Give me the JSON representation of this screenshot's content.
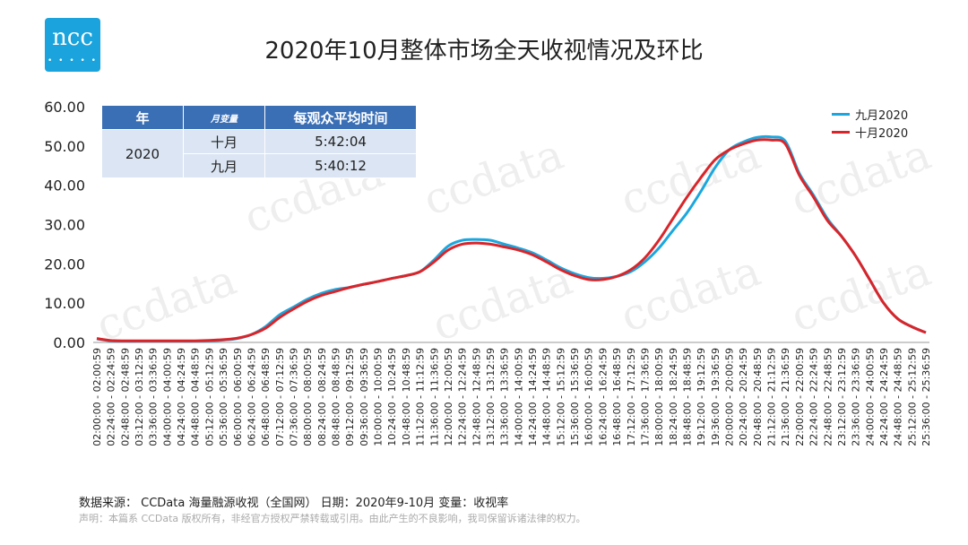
{
  "logo": {
    "text": "ncc",
    "dots": "• • • • •"
  },
  "title": "2020年10月整体市场全天收视情况及环比",
  "watermark": "ccdata",
  "table": {
    "headers": [
      "年",
      "月",
      "变量",
      "每观众平均时间"
    ],
    "year": "2020",
    "rows": [
      {
        "month": "十月",
        "value": "5:42:04"
      },
      {
        "month": "九月",
        "value": "5:40:12"
      }
    ]
  },
  "legend": [
    {
      "name": "九月2020",
      "color": "#1ba7de"
    },
    {
      "name": "十月2020",
      "color": "#d9252a"
    }
  ],
  "footer": {
    "source": "数据来源： CCData 海量融源收视（全国网）   日期：2020年9-10月  变量：收视率",
    "disclaimer": "声明：本篇系 CCData 版权所有，非经官方授权严禁转载或引用。由此产生的不良影响，我司保留诉诸法律的权力。"
  },
  "chart_data": {
    "type": "line",
    "ylim": [
      0,
      60
    ],
    "yticks": [
      "0.00",
      "10.00",
      "20.00",
      "30.00",
      "40.00",
      "50.00",
      "60.00"
    ],
    "categories": [
      "02:00:00 - 02:00:59",
      "02:24:00 - 02:24:59",
      "02:48:00 - 02:48:59",
      "03:12:00 - 03:12:59",
      "03:36:00 - 03:36:59",
      "04:00:00 - 04:00:59",
      "04:24:00 - 04:24:59",
      "04:48:00 - 04:48:59",
      "05:12:00 - 05:12:59",
      "05:36:00 - 05:36:59",
      "06:00:00 - 06:00:59",
      "06:24:00 - 06:24:59",
      "06:48:00 - 06:48:59",
      "07:12:00 - 07:12:59",
      "07:36:00 - 07:36:59",
      "08:00:00 - 08:00:59",
      "08:24:00 - 08:24:59",
      "08:48:00 - 08:48:59",
      "09:12:00 - 09:12:59",
      "09:36:00 - 09:36:59",
      "10:00:00 - 10:00:59",
      "10:24:00 - 10:24:59",
      "10:48:00 - 10:48:59",
      "11:12:00 - 11:12:59",
      "11:36:00 - 11:36:59",
      "12:00:00 - 12:00:59",
      "12:24:00 - 12:24:59",
      "12:48:00 - 12:48:59",
      "13:12:00 - 13:12:59",
      "13:36:00 - 13:36:59",
      "14:00:00 - 14:00:59",
      "14:24:00 - 14:24:59",
      "14:48:00 - 14:48:59",
      "15:12:00 - 15:12:59",
      "15:36:00 - 15:36:59",
      "16:00:00 - 16:00:59",
      "16:24:00 - 16:24:59",
      "16:48:00 - 16:48:59",
      "17:12:00 - 17:12:59",
      "17:36:00 - 17:36:59",
      "18:00:00 - 18:00:59",
      "18:24:00 - 18:24:59",
      "18:48:00 - 18:48:59",
      "19:12:00 - 19:12:59",
      "19:36:00 - 19:36:59",
      "20:00:00 - 20:00:59",
      "20:24:00 - 20:24:59",
      "20:48:00 - 20:48:59",
      "21:12:00 - 21:12:59",
      "21:36:00 - 21:36:59",
      "22:00:00 - 22:00:59",
      "22:24:00 - 22:24:59",
      "22:48:00 - 22:48:59",
      "23:12:00 - 23:12:59",
      "23:36:00 - 23:36:59",
      "24:00:00 - 24:00:59",
      "24:24:00 - 24:24:59",
      "24:48:00 - 24:48:59",
      "25:12:00 - 25:12:59",
      "25:36:00 - 25:36:59"
    ],
    "series": [
      {
        "name": "九月2020",
        "values": [
          0.9,
          0.4,
          0.3,
          0.3,
          0.3,
          0.3,
          0.3,
          0.3,
          0.4,
          0.6,
          1.0,
          2.0,
          4.0,
          7.0,
          9.0,
          11.0,
          12.5,
          13.5,
          14.0,
          14.8,
          15.5,
          16.3,
          17.0,
          18.0,
          21.0,
          24.5,
          26.0,
          26.2,
          26.0,
          25.0,
          24.0,
          22.8,
          21.0,
          19.0,
          17.5,
          16.5,
          16.3,
          16.8,
          18.0,
          20.5,
          24.0,
          28.5,
          33.0,
          38.5,
          44.5,
          49.0,
          51.0,
          52.2,
          52.3,
          51.2,
          43.0,
          37.5,
          31.5,
          27.0,
          22.0,
          16.0,
          10.0,
          6.0,
          4.0,
          2.5
        ]
      },
      {
        "name": "十月2020",
        "values": [
          1.0,
          0.5,
          0.4,
          0.4,
          0.4,
          0.4,
          0.4,
          0.4,
          0.5,
          0.7,
          1.1,
          2.0,
          3.6,
          6.3,
          8.5,
          10.5,
          12.0,
          13.0,
          14.0,
          14.8,
          15.5,
          16.3,
          17.0,
          18.0,
          20.5,
          23.5,
          25.0,
          25.3,
          25.0,
          24.3,
          23.5,
          22.3,
          20.5,
          18.5,
          17.0,
          16.0,
          16.0,
          16.8,
          18.5,
          21.5,
          26.0,
          31.5,
          37.0,
          42.0,
          46.5,
          49.0,
          50.5,
          51.5,
          51.5,
          50.5,
          42.5,
          37.0,
          31.0,
          27.0,
          22.0,
          16.0,
          10.0,
          6.0,
          4.0,
          2.5
        ]
      }
    ]
  }
}
